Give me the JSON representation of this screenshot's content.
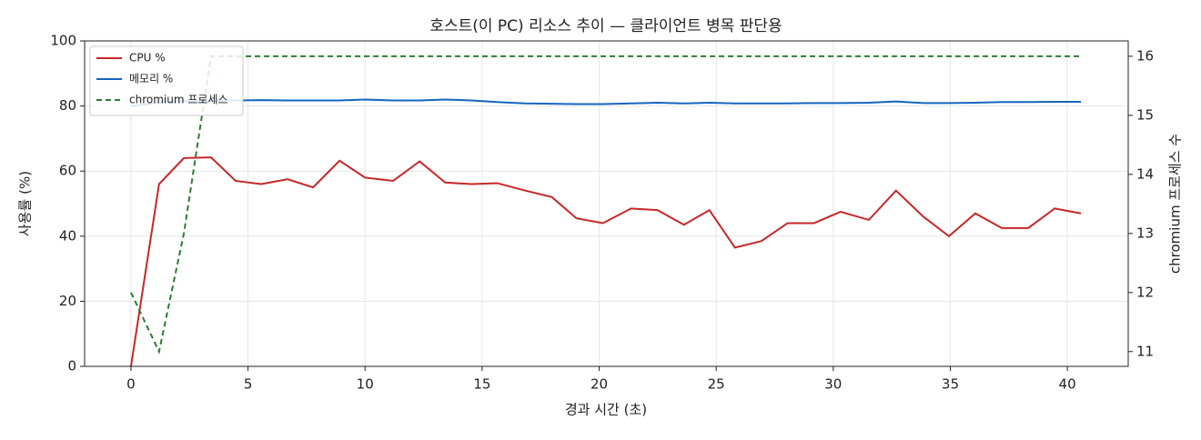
{
  "chart_data": {
    "type": "line",
    "title": "호스트(이 PC) 리소스 추이 — 클라이언트 병목 판단용",
    "x_label": "경과 시간 (초)",
    "y_label": "사용률 (%)",
    "y2_label": "chromium 프로세스 수",
    "x": [
      0,
      1.2,
      2.26,
      3.42,
      4.47,
      5.56,
      6.69,
      7.78,
      8.91,
      10.0,
      11.2,
      12.33,
      13.42,
      14.55,
      15.64,
      16.85,
      17.98,
      19.03,
      20.16,
      21.36,
      22.49,
      23.62,
      24.71,
      25.8,
      26.93,
      28.05,
      29.18,
      30.31,
      31.52,
      32.68,
      33.85,
      34.94,
      36.07,
      37.2,
      38.33,
      39.46,
      40.58
    ],
    "series": [
      {
        "name": "CPU %",
        "color": "#c62828",
        "values": [
          0,
          56,
          64,
          64.2,
          57,
          56,
          57.5,
          55,
          63.2,
          58,
          57,
          63,
          56.5,
          56,
          56.3,
          54,
          52,
          45.5,
          44,
          48.5,
          48,
          43.5,
          48,
          36.5,
          38.5,
          44,
          44,
          47.5,
          45,
          54,
          46,
          40,
          47,
          42.5,
          42.5,
          48.5,
          47
        ]
      },
      {
        "name": "메모리 %",
        "color": "#1565c0",
        "values": [
          80,
          81,
          81.5,
          81.5,
          81.7,
          81.8,
          81.7,
          81.7,
          81.7,
          82,
          81.7,
          81.7,
          82,
          81.7,
          81.2,
          80.8,
          80.7,
          80.6,
          80.6,
          80.8,
          81,
          80.8,
          81,
          80.8,
          80.8,
          80.8,
          80.9,
          80.9,
          81,
          81.4,
          80.9,
          80.9,
          81,
          81.2,
          81.2,
          81.3,
          81.3
        ]
      },
      {
        "name": "chromium 프로세스",
        "color": "#2e7d32",
        "dashed": true,
        "axis": "y2",
        "values": [
          12,
          11,
          13,
          16,
          16,
          16,
          16,
          16,
          16,
          16,
          16,
          16,
          16,
          16,
          16,
          16,
          16,
          16,
          16,
          16,
          16,
          16,
          16,
          16,
          16,
          16,
          16,
          16,
          16,
          16,
          16,
          16,
          16,
          16,
          16,
          16,
          16
        ]
      }
    ],
    "xlim": [
      -1.98,
      42.6
    ],
    "xticks": [
      0,
      5,
      10,
      15,
      20,
      25,
      30,
      35,
      40
    ],
    "ylim": [
      0,
      100
    ],
    "yticks": [
      0,
      20,
      40,
      60,
      80,
      100
    ],
    "y2lim": [
      10.75,
      16.26
    ],
    "y2ticks": [
      11,
      12,
      13,
      14,
      15,
      16
    ],
    "grid": true,
    "legend": "upper-left"
  }
}
